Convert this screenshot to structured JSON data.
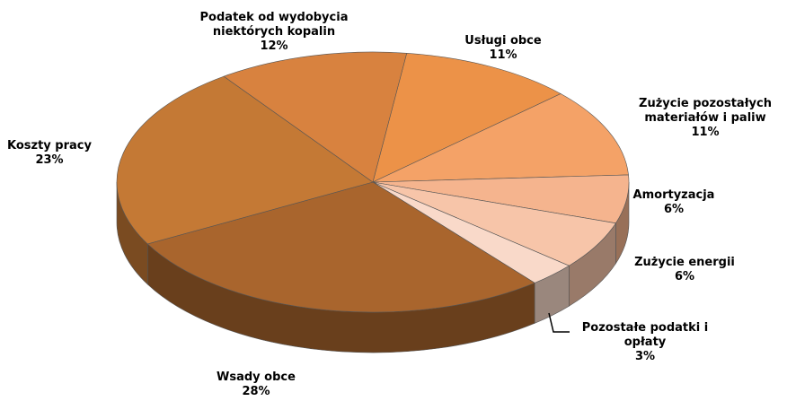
{
  "chart_data": {
    "type": "pie3d",
    "categories": [
      "Usługi obce",
      "Zużycie pozostałych materiałów i paliw",
      "Amortyzacja",
      "Zużycie energii",
      "Pozostałe podatki i opłaty",
      "Wsady obce",
      "Koszty pracy",
      "Podatek od wydobycia niektórych kopalin"
    ],
    "values": [
      11,
      11,
      6,
      6,
      3,
      28,
      23,
      12
    ],
    "value_labels": [
      "11%",
      "11%",
      "6%",
      "6%",
      "3%",
      "28%",
      "23%",
      "12%"
    ],
    "colors": [
      "#ec9248",
      "#f4a267",
      "#f5b48e",
      "#f7c5a9",
      "#f9d9c9",
      "#a9652d",
      "#c47935",
      "#d8823f"
    ]
  }
}
